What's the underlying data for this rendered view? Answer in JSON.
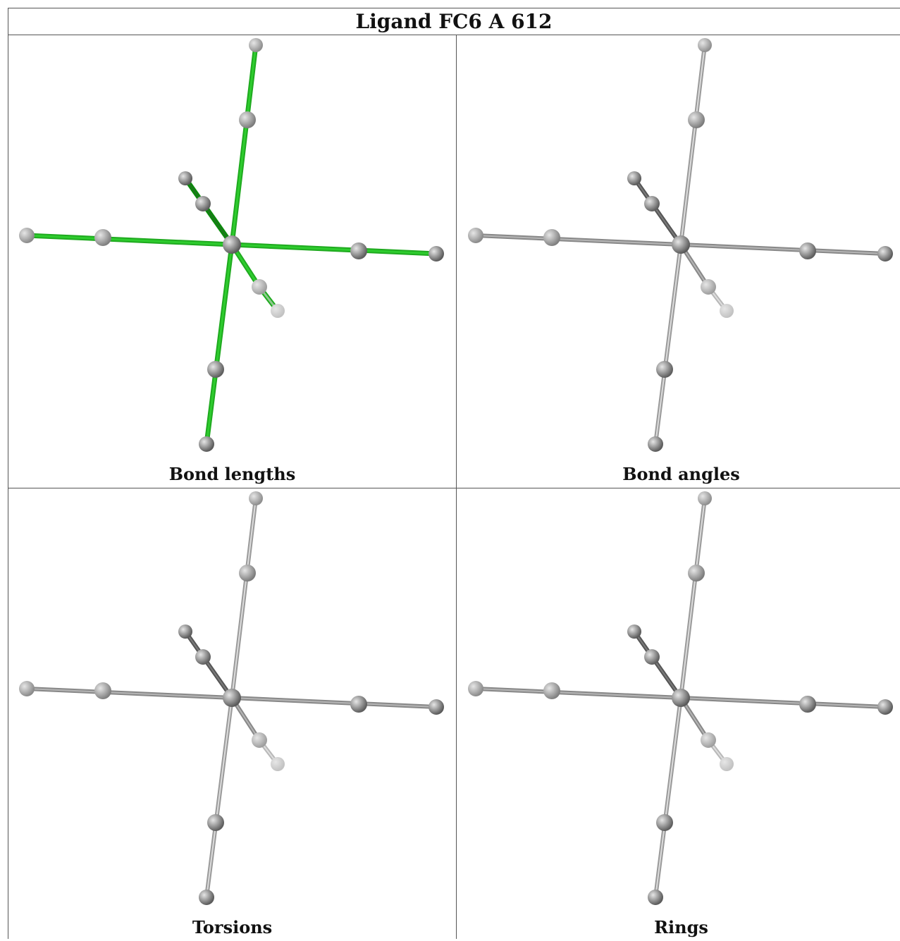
{
  "title": "Ligand FC6 A 612",
  "panels": [
    {
      "caption": "Bond lengths",
      "highlight": "green"
    },
    {
      "caption": "Bond angles",
      "highlight": "none"
    },
    {
      "caption": "Torsions",
      "highlight": "none"
    },
    {
      "caption": "Rings",
      "highlight": "none"
    }
  ],
  "colors": {
    "highlight_bond": "#2ecc2e",
    "highlight_bond_dark": "#0a8a0a",
    "bond_gray_light": "#c8c8c8",
    "bond_gray_dark": "#6e6e6e",
    "atom": "#6a6a6a",
    "border": "#555555"
  }
}
